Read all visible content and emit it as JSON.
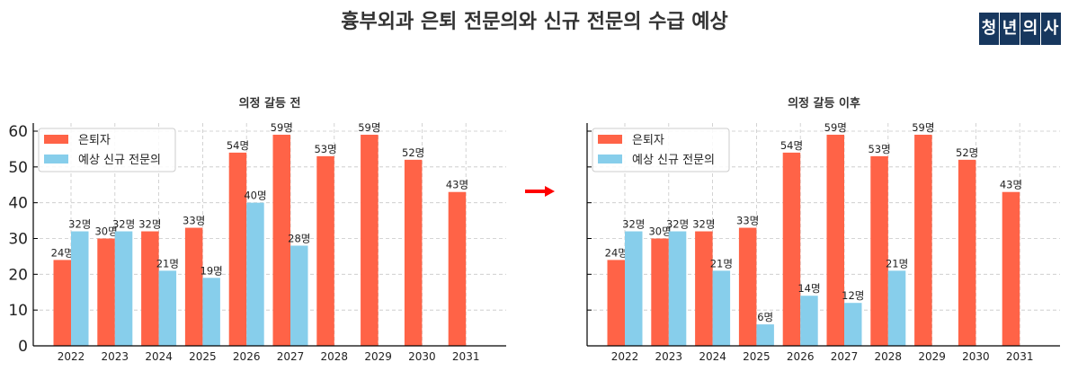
{
  "title": "흉부외과 은퇴 전문의와 신규 전문의 수급 예상",
  "logo": {
    "chars": [
      "청",
      "년",
      "의",
      "사"
    ],
    "bg": "#17375e"
  },
  "colors": {
    "retire": "#ff6347",
    "new": "#87ceeb",
    "arrow": "#ff0000"
  },
  "chart_data": [
    {
      "type": "bar",
      "title": "의정 갈등 전",
      "categories": [
        "2022",
        "2023",
        "2024",
        "2025",
        "2026",
        "2027",
        "2028",
        "2029",
        "2030",
        "2031"
      ],
      "series": [
        {
          "name": "은퇴자",
          "values": [
            24,
            30,
            32,
            33,
            54,
            59,
            53,
            59,
            52,
            43
          ]
        },
        {
          "name": "예상 신규 전문의",
          "values": [
            32,
            32,
            21,
            19,
            40,
            28,
            null,
            null,
            null,
            null
          ]
        }
      ],
      "labels": {
        "retire": [
          "24명",
          "30명",
          "32명",
          "33명",
          "54명",
          "59명",
          "53명",
          "59명",
          "52명",
          "43명"
        ],
        "new": [
          "32명",
          "32명",
          "21명",
          "19명",
          "40명",
          "28명",
          "",
          "",
          "",
          ""
        ]
      },
      "xlabel": "",
      "ylabel": "",
      "ylim": [
        0,
        62
      ],
      "yticks": [
        "0",
        "10",
        "20",
        "30",
        "40",
        "50",
        "60"
      ],
      "grid": true,
      "legend_position": "upper left"
    },
    {
      "type": "bar",
      "title": "의정 갈등 이후",
      "categories": [
        "2022",
        "2023",
        "2024",
        "2025",
        "2026",
        "2027",
        "2028",
        "2029",
        "2030",
        "2031"
      ],
      "series": [
        {
          "name": "은퇴자",
          "values": [
            24,
            30,
            32,
            33,
            54,
            59,
            53,
            59,
            52,
            43
          ]
        },
        {
          "name": "예상 신규 전문의",
          "values": [
            32,
            32,
            21,
            6,
            14,
            12,
            21,
            null,
            null,
            null
          ]
        }
      ],
      "labels": {
        "retire": [
          "24명",
          "30명",
          "32명",
          "33명",
          "54명",
          "59명",
          "53명",
          "59명",
          "52명",
          "43명"
        ],
        "new": [
          "32명",
          "32명",
          "21명",
          "6명",
          "14명",
          "12명",
          "21명",
          "",
          "",
          ""
        ]
      },
      "xlabel": "",
      "ylabel": "",
      "ylim": [
        0,
        62
      ],
      "grid": true,
      "legend_position": "upper left"
    }
  ]
}
